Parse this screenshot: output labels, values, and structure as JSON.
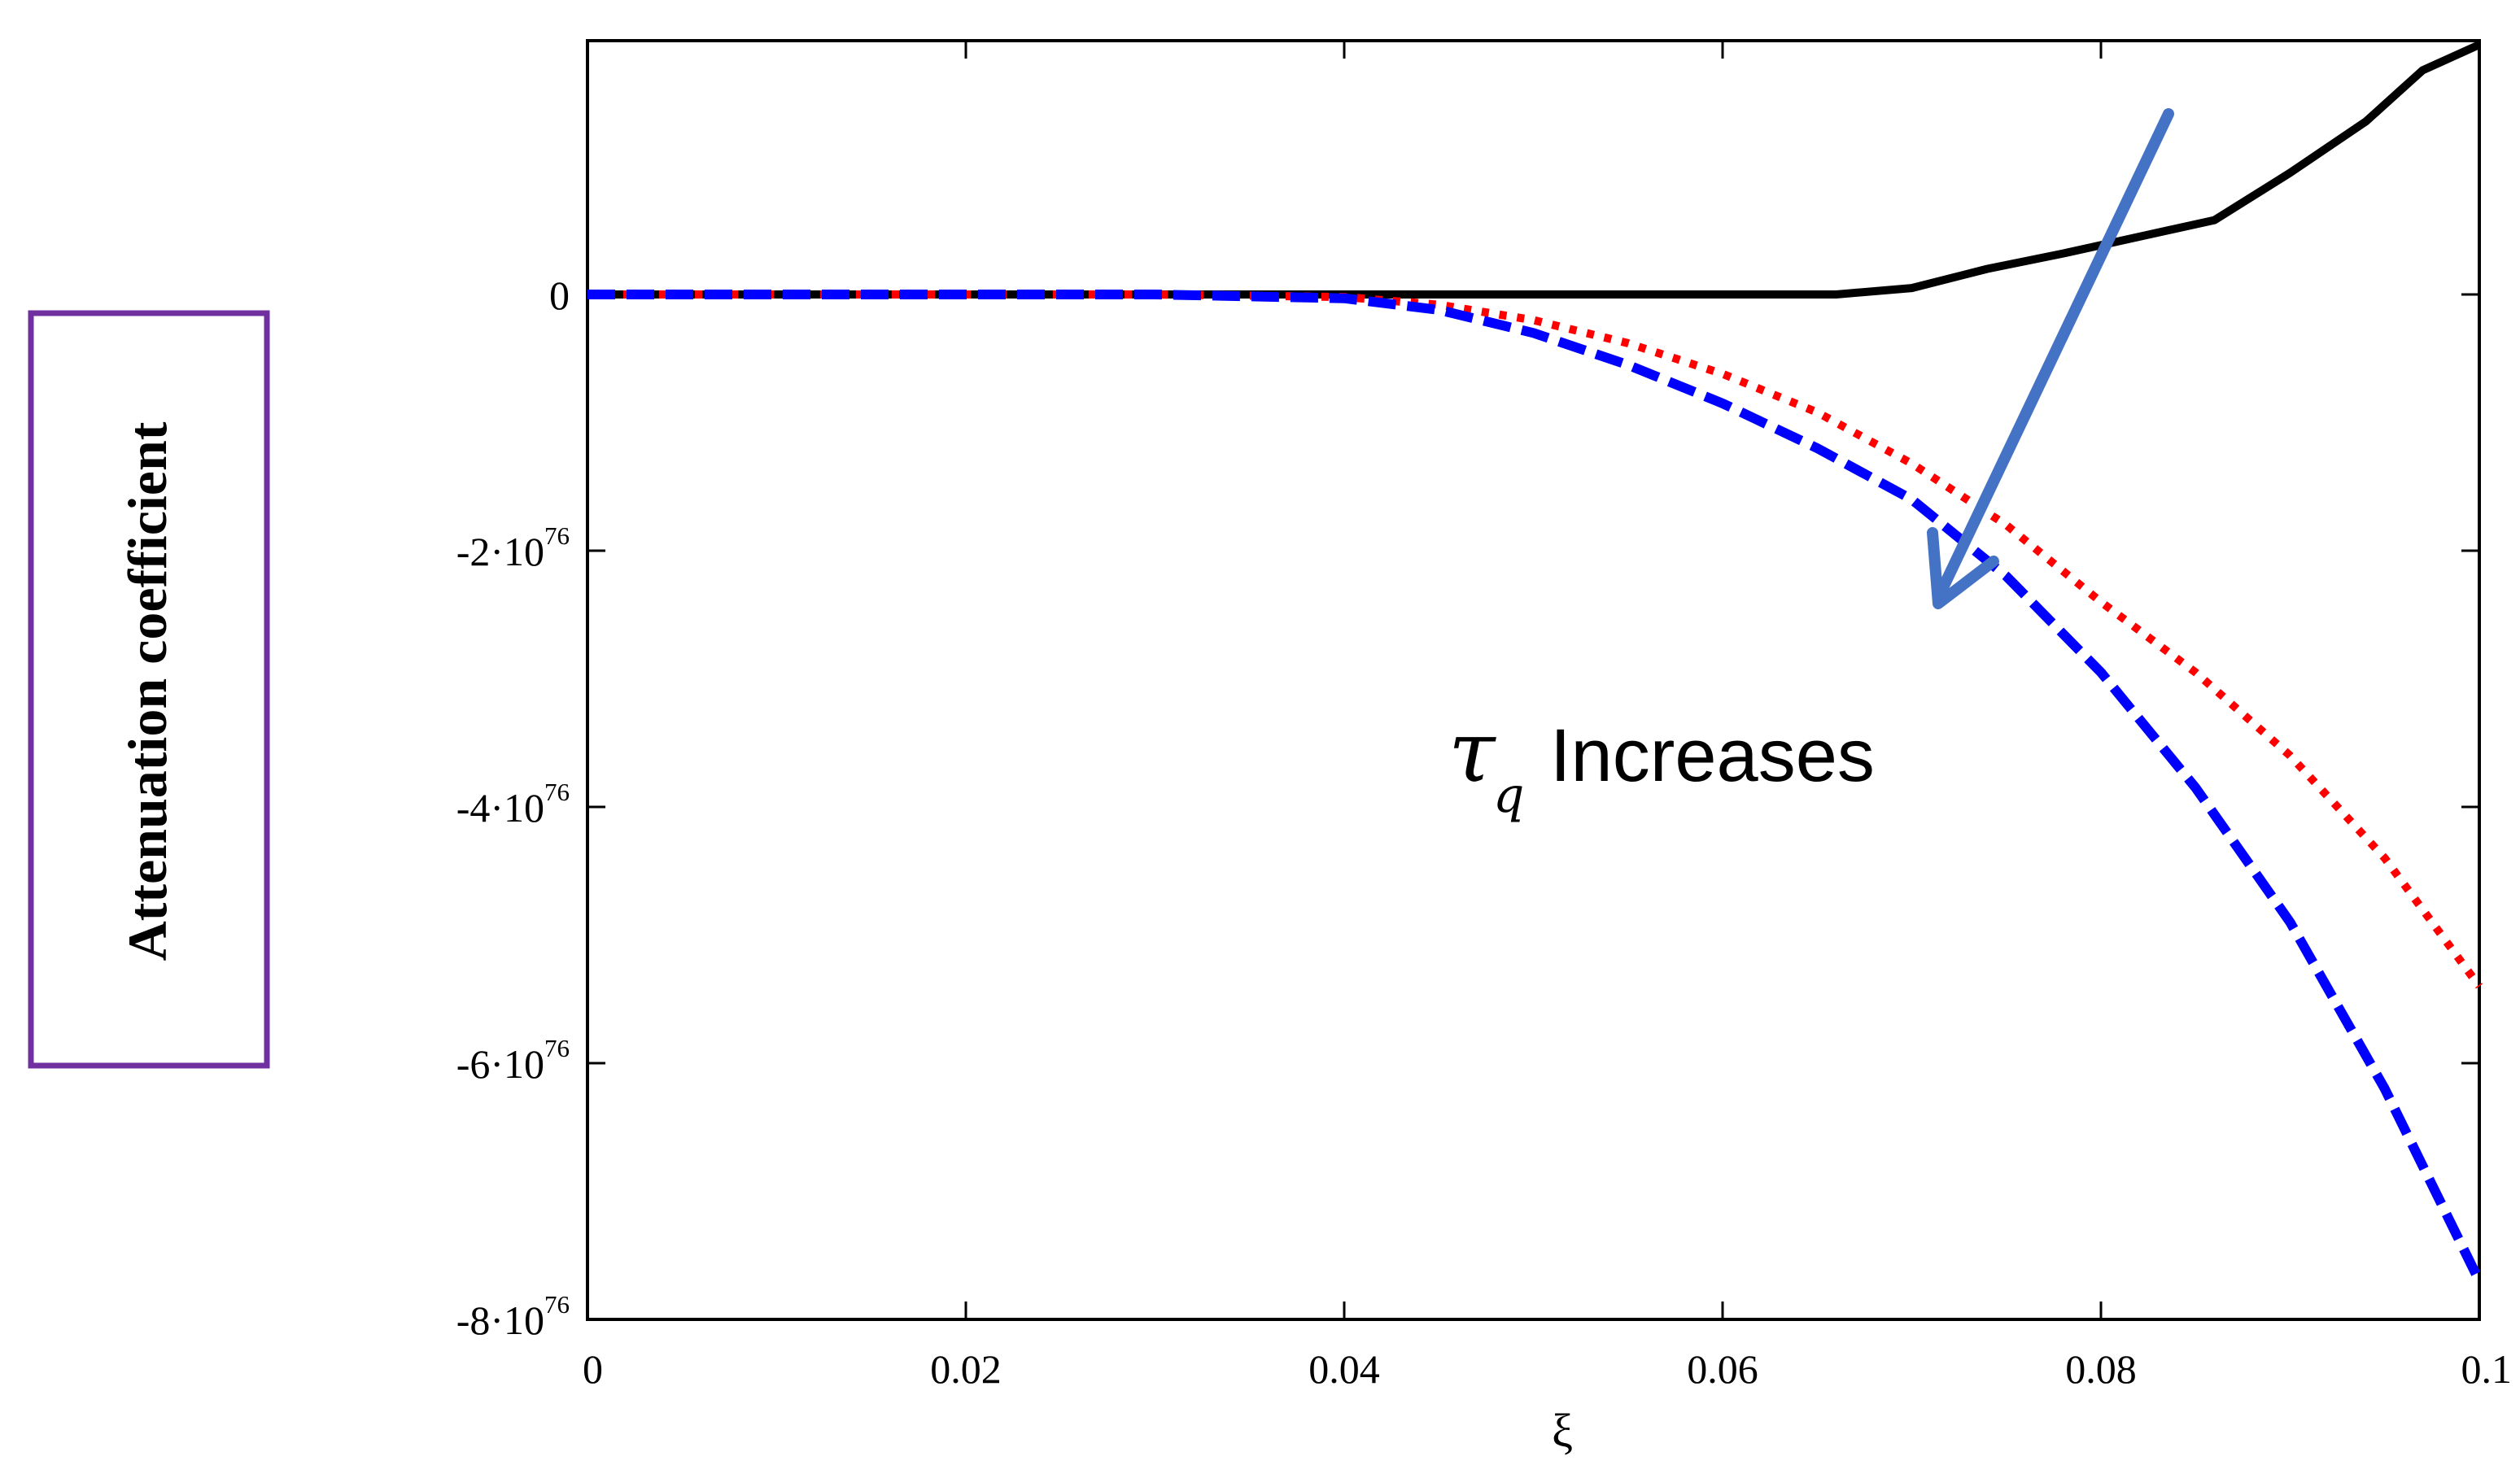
{
  "chart_data": {
    "type": "line",
    "xlabel": "ξ",
    "ylabel": "Attenuation coefficient",
    "xlim": [
      0,
      0.1
    ],
    "ylim": [
      -8e+76,
      4e+76
    ],
    "x_ticks": [
      {
        "value": 0,
        "label": "0"
      },
      {
        "value": 0.02,
        "label": "0.02"
      },
      {
        "value": 0.04,
        "label": "0.04"
      },
      {
        "value": 0.06,
        "label": "0.06"
      },
      {
        "value": 0.08,
        "label": "0.08"
      },
      {
        "value": 0.1,
        "label": "0.1"
      }
    ],
    "y_ticks": [
      {
        "value": 0,
        "mantissa": "0",
        "exponent": ""
      },
      {
        "value": -2e+76,
        "mantissa": "-2·10",
        "exponent": "76"
      },
      {
        "value": -4e+76,
        "mantissa": "-4·10",
        "exponent": "76"
      },
      {
        "value": -6e+76,
        "mantissa": "-6·10",
        "exponent": "76"
      },
      {
        "value": -8e+76,
        "mantissa": "-8·10",
        "exponent": "76"
      }
    ],
    "series": [
      {
        "color": "#000000",
        "style": "solid",
        "x": [
          0,
          0.038,
          0.066,
          0.07,
          0.074,
          0.078,
          0.082,
          0.086,
          0.09,
          0.094,
          0.097,
          0.1
        ],
        "y": [
          0,
          0,
          0,
          5e+74,
          2e+75,
          3.2e+75,
          4.5e+75,
          5.8e+75,
          9.5e+75,
          1.35e+76,
          1.75e+76,
          1.95e+76
        ]
      },
      {
        "color": "#ff0000",
        "style": "dotted",
        "x": [
          0,
          0.03,
          0.04,
          0.045,
          0.05,
          0.055,
          0.06,
          0.065,
          0.07,
          0.075,
          0.08,
          0.085,
          0.09,
          0.095,
          0.1
        ],
        "y": [
          0,
          0,
          -2e+74,
          -8e+74,
          -2e+75,
          -3.8e+75,
          -6.2e+75,
          -9.2e+75,
          -1.32e+76,
          -1.8e+76,
          -2.4e+76,
          -2.95e+76,
          -3.6e+76,
          -4.4e+76,
          -5.4e+76
        ]
      },
      {
        "color": "#0000ff",
        "style": "dashed",
        "x": [
          0,
          0.03,
          0.04,
          0.045,
          0.05,
          0.055,
          0.06,
          0.065,
          0.07,
          0.075,
          0.08,
          0.085,
          0.09,
          0.095,
          0.1
        ],
        "y": [
          0,
          0,
          -3e+74,
          -1.2e+75,
          -3e+75,
          -5.5e+75,
          -8.5e+75,
          -1.2e+76,
          -1.6e+76,
          -2.2e+76,
          -2.95e+76,
          -3.85e+76,
          -4.9e+76,
          -6.2e+76,
          -7.7e+76
        ]
      }
    ],
    "annotation": {
      "symbol": "τ",
      "subscript": "q",
      "text": "Increases",
      "arrow_color": "#4472c4"
    },
    "label_box_color": "#7030a0"
  }
}
